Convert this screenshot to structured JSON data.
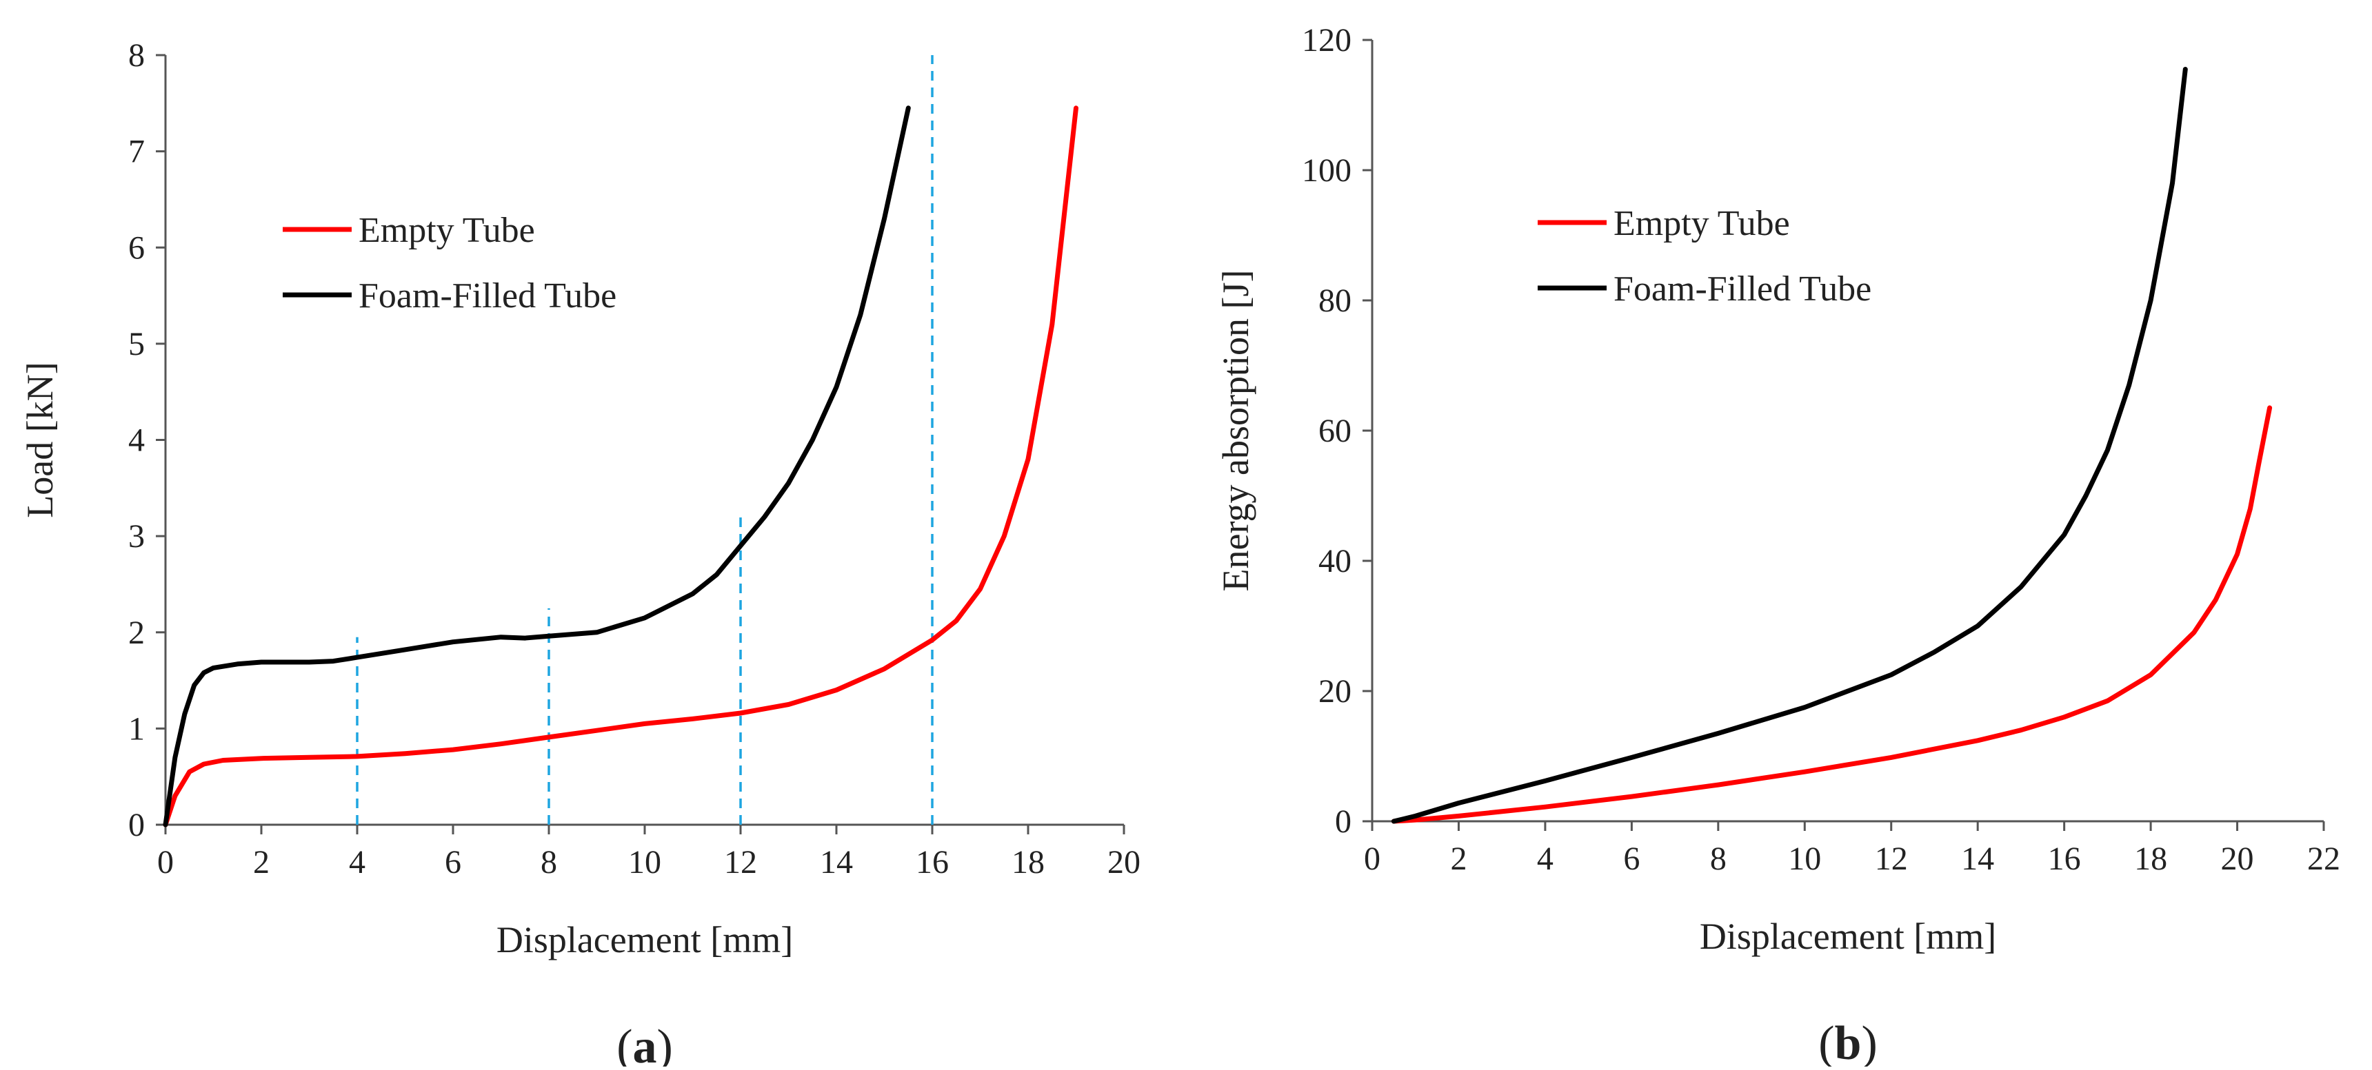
{
  "chart_data": [
    {
      "type": "line",
      "panel_label": "a",
      "xlabel": "Displacement [mm]",
      "ylabel": "Load [kN]",
      "xlim": [
        0,
        20
      ],
      "ylim": [
        0,
        8
      ],
      "xticks": [
        0,
        2,
        4,
        6,
        8,
        10,
        12,
        14,
        16,
        18,
        20
      ],
      "yticks": [
        0,
        1,
        2,
        3,
        4,
        5,
        6,
        7,
        8
      ],
      "legend_position": "upper-left",
      "grid": false,
      "series": [
        {
          "name": "Empty Tube",
          "color": "#ff0000",
          "points": [
            [
              0,
              0
            ],
            [
              0.2,
              0.3
            ],
            [
              0.5,
              0.55
            ],
            [
              0.8,
              0.63
            ],
            [
              1.2,
              0.67
            ],
            [
              2,
              0.69
            ],
            [
              3,
              0.7
            ],
            [
              4,
              0.71
            ],
            [
              5,
              0.74
            ],
            [
              6,
              0.78
            ],
            [
              7,
              0.84
            ],
            [
              8,
              0.91
            ],
            [
              9,
              0.98
            ],
            [
              10,
              1.05
            ],
            [
              11,
              1.1
            ],
            [
              12,
              1.16
            ],
            [
              13,
              1.25
            ],
            [
              14,
              1.4
            ],
            [
              15,
              1.62
            ],
            [
              16,
              1.92
            ],
            [
              16.5,
              2.12
            ],
            [
              17,
              2.45
            ],
            [
              17.5,
              3.0
            ],
            [
              18,
              3.8
            ],
            [
              18.5,
              5.2
            ],
            [
              19,
              7.45
            ]
          ]
        },
        {
          "name": "Foam-Filled Tube",
          "color": "#000000",
          "points": [
            [
              0,
              0
            ],
            [
              0.2,
              0.7
            ],
            [
              0.4,
              1.15
            ],
            [
              0.6,
              1.45
            ],
            [
              0.8,
              1.58
            ],
            [
              1.0,
              1.63
            ],
            [
              1.5,
              1.67
            ],
            [
              2,
              1.69
            ],
            [
              3,
              1.69
            ],
            [
              3.5,
              1.7
            ],
            [
              4,
              1.74
            ],
            [
              5,
              1.82
            ],
            [
              6,
              1.9
            ],
            [
              7,
              1.95
            ],
            [
              7.5,
              1.94
            ],
            [
              8,
              1.96
            ],
            [
              9,
              2.0
            ],
            [
              10,
              2.15
            ],
            [
              11,
              2.4
            ],
            [
              11.5,
              2.6
            ],
            [
              12,
              2.9
            ],
            [
              12.5,
              3.2
            ],
            [
              13,
              3.55
            ],
            [
              13.5,
              4.0
            ],
            [
              14,
              4.55
            ],
            [
              14.5,
              5.3
            ],
            [
              15,
              6.3
            ],
            [
              15.5,
              7.45
            ]
          ]
        }
      ],
      "annotations": {
        "dashed_vertical_lines": [
          {
            "x": 4,
            "y_top": 1.95
          },
          {
            "x": 8,
            "y_top": 2.25
          },
          {
            "x": 12,
            "y_top": 3.2
          },
          {
            "x": 16,
            "y_top": 8
          }
        ],
        "dashed_line_color": "#1ea5e0"
      }
    },
    {
      "type": "line",
      "panel_label": "b",
      "xlabel": "Displacement [mm]",
      "ylabel": "Energy absorption [J]",
      "xlim": [
        0,
        22
      ],
      "ylim": [
        0,
        120
      ],
      "xticks": [
        0,
        2,
        4,
        6,
        8,
        10,
        12,
        14,
        16,
        18,
        20,
        22
      ],
      "yticks": [
        0,
        20,
        40,
        60,
        80,
        100,
        120
      ],
      "legend_position": "upper-left",
      "grid": false,
      "series": [
        {
          "name": "Empty Tube",
          "color": "#ff0000",
          "points": [
            [
              0.5,
              0
            ],
            [
              1,
              0.2
            ],
            [
              2,
              0.8
            ],
            [
              4,
              2.2
            ],
            [
              6,
              3.8
            ],
            [
              8,
              5.6
            ],
            [
              10,
              7.6
            ],
            [
              12,
              9.8
            ],
            [
              14,
              12.4
            ],
            [
              15,
              14
            ],
            [
              16,
              16
            ],
            [
              17,
              18.5
            ],
            [
              18,
              22.5
            ],
            [
              19,
              29
            ],
            [
              19.5,
              34
            ],
            [
              20,
              41
            ],
            [
              20.3,
              48
            ],
            [
              20.5,
              55
            ],
            [
              20.75,
              63.5
            ]
          ]
        },
        {
          "name": "Foam-Filled Tube",
          "color": "#000000",
          "points": [
            [
              0.5,
              0
            ],
            [
              1,
              0.8
            ],
            [
              2,
              2.8
            ],
            [
              4,
              6.2
            ],
            [
              6,
              9.8
            ],
            [
              8,
              13.5
            ],
            [
              10,
              17.5
            ],
            [
              12,
              22.5
            ],
            [
              13,
              26
            ],
            [
              14,
              30
            ],
            [
              15,
              36
            ],
            [
              16,
              44
            ],
            [
              16.5,
              50
            ],
            [
              17,
              57
            ],
            [
              17.5,
              67
            ],
            [
              18,
              80
            ],
            [
              18.5,
              98
            ],
            [
              18.8,
              115.5
            ]
          ]
        }
      ]
    }
  ],
  "captions": {
    "a": {
      "open": "(",
      "letter": "a",
      "close": ")"
    },
    "b": {
      "open": "(",
      "letter": "b",
      "close": ")"
    }
  }
}
